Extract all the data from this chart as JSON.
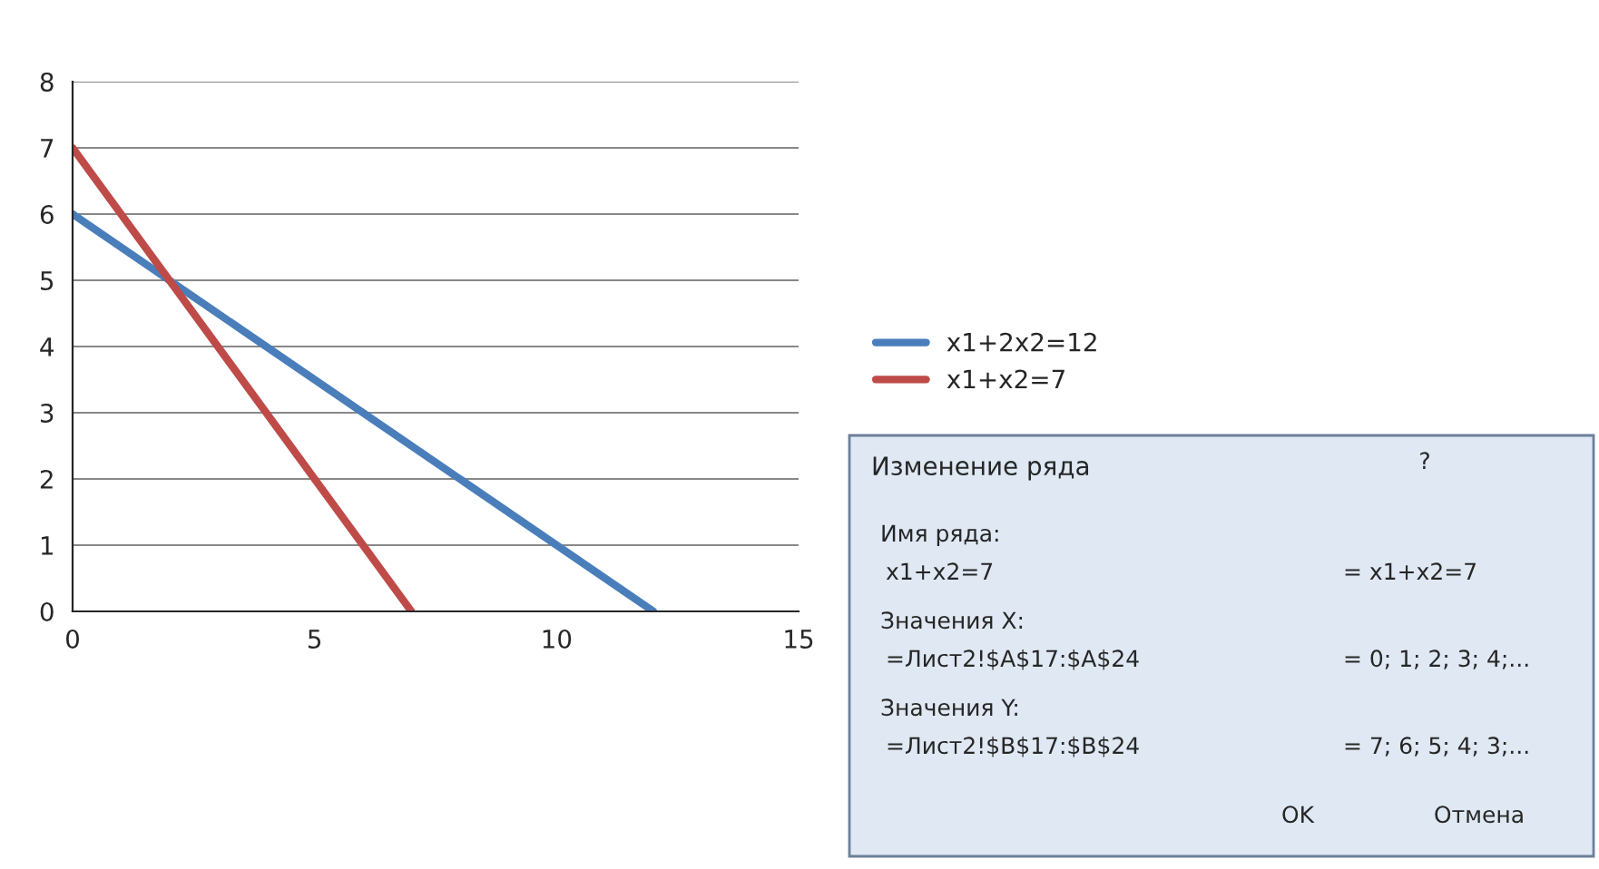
{
  "chart_data": {
    "type": "line",
    "series": [
      {
        "name": "x1+2x2=12",
        "color": "#4a7ebb",
        "x": [
          0,
          12
        ],
        "values": [
          6,
          0
        ]
      },
      {
        "name": "x1+x2=7",
        "color": "#be4b48",
        "x": [
          0,
          7
        ],
        "values": [
          7,
          0
        ]
      }
    ],
    "xlim": [
      0,
      15
    ],
    "xticks": [
      0,
      5,
      10,
      15
    ],
    "ylim": [
      0,
      8
    ],
    "yticks": [
      0,
      1,
      2,
      3,
      4,
      5,
      6,
      7,
      8
    ],
    "grid": "y",
    "legend": "right",
    "marker": "none",
    "line_style": "solid",
    "annotations": [
      "Изменение ряда",
      "?",
      "Имя ряда:",
      "x1+x2=7",
      "= x1+x2=7",
      "Значения X:",
      "=Лист2!$A$17:$A$24",
      "= 0; 1; 2; 3; 4;...",
      "Значения Y:",
      "=Лист2!$B$17:$B$24",
      "= 7; 6; 5; 4; 3;...",
      "OK",
      "Отмена"
    ]
  }
}
